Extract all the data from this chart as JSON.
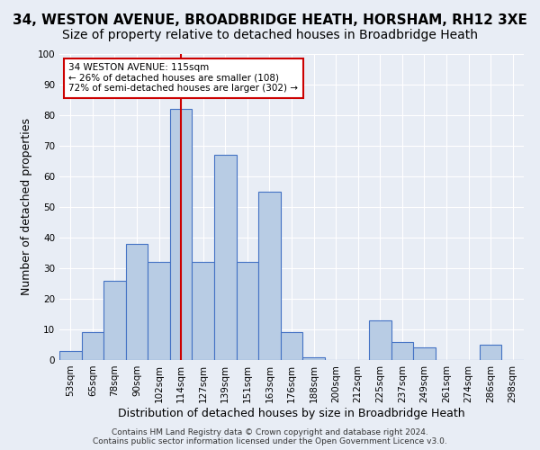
{
  "title_line1": "34, WESTON AVENUE, BROADBRIDGE HEATH, HORSHAM, RH12 3XE",
  "title_line2": "Size of property relative to detached houses in Broadbridge Heath",
  "xlabel": "Distribution of detached houses by size in Broadbridge Heath",
  "ylabel": "Number of detached properties",
  "footer_line1": "Contains HM Land Registry data © Crown copyright and database right 2024.",
  "footer_line2": "Contains public sector information licensed under the Open Government Licence v3.0.",
  "categories": [
    "53sqm",
    "65sqm",
    "78sqm",
    "90sqm",
    "102sqm",
    "114sqm",
    "127sqm",
    "139sqm",
    "151sqm",
    "163sqm",
    "176sqm",
    "188sqm",
    "200sqm",
    "212sqm",
    "225sqm",
    "237sqm",
    "249sqm",
    "261sqm",
    "274sqm",
    "286sqm",
    "298sqm"
  ],
  "values": [
    3,
    9,
    26,
    38,
    32,
    82,
    32,
    67,
    32,
    55,
    9,
    1,
    0,
    0,
    13,
    6,
    4,
    0,
    0,
    5,
    0
  ],
  "bar_color": "#b8cce4",
  "bar_edge_color": "#4472c4",
  "vline_x": 5,
  "vline_color": "#cc0000",
  "annotation_text": "34 WESTON AVENUE: 115sqm\n← 26% of detached houses are smaller (108)\n72% of semi-detached houses are larger (302) →",
  "annotation_box_color": "#ffffff",
  "annotation_box_edge": "#cc0000",
  "ylim": [
    0,
    100
  ],
  "yticks": [
    0,
    10,
    20,
    30,
    40,
    50,
    60,
    70,
    80,
    90,
    100
  ],
  "bg_color": "#e8edf5",
  "plot_bg_color": "#e8edf5",
  "grid_color": "#ffffff",
  "title_fontsize": 11,
  "subtitle_fontsize": 10,
  "tick_fontsize": 7.5,
  "ylabel_fontsize": 9,
  "xlabel_fontsize": 9,
  "annotation_fontsize": 7.5,
  "footer_fontsize": 6.5
}
